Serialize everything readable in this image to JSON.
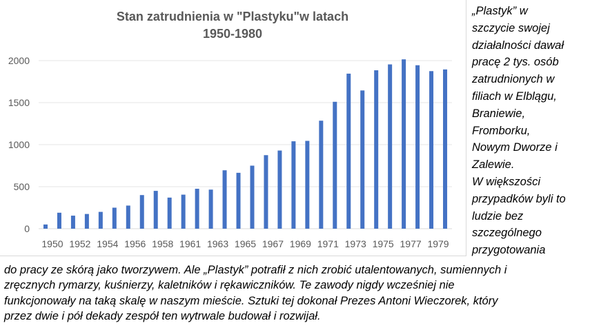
{
  "chart_data": {
    "type": "bar",
    "title": [
      "Stan zatrudnienia w \"Plastyku\"w latach",
      "1950-1980"
    ],
    "xlabel": "",
    "ylabel": "",
    "ylim": [
      0,
      2000
    ],
    "yticks": [
      0,
      500,
      1000,
      1500,
      2000
    ],
    "grid": true,
    "legend": "none",
    "bar_color": "#4472c4",
    "categories": [
      "1950",
      "1951",
      "1952",
      "1953",
      "1954",
      "1955",
      "1956",
      "1957",
      "1958",
      "1959",
      "1961",
      "1962",
      "1963",
      "1964",
      "1965",
      "1966",
      "1967",
      "1968",
      "1969",
      "1970",
      "1971",
      "1972",
      "1973",
      "1974",
      "1975",
      "1976",
      "1977",
      "1978",
      "1979",
      "1980"
    ],
    "category_labels": [
      "1950",
      "",
      "1952",
      "",
      "1954",
      "",
      "1956",
      "",
      "1958",
      "",
      "1961",
      "",
      "1963",
      "",
      "1965",
      "",
      "1967",
      "",
      "1969",
      "",
      "1971",
      "",
      "1973",
      "",
      "1975",
      "",
      "1977",
      "",
      "1979",
      ""
    ],
    "values": [
      50,
      190,
      155,
      175,
      200,
      250,
      275,
      400,
      450,
      370,
      405,
      475,
      465,
      695,
      665,
      750,
      875,
      930,
      1040,
      1045,
      1285,
      1510,
      1845,
      1645,
      1885,
      1955,
      2015,
      1945,
      1875,
      1895
    ]
  },
  "side_text": "„Plastyk” w\nszczycie swojej\ndziałalności dawał\npracę 2 tys. osób\nzatrudnionych w\nfiliach w Elblągu,\nBraniewie,\nFromborku,\nNowym Dworze i\nZalewie.\nW większości\nprzypadków byli to\nludzie bez\nszczególnego\nprzygotowania",
  "bottom_text": "do pracy ze skórą jako tworzywem. Ale „Plastyk” potrafił z nich zrobić utalentowanych, sumiennych i\nzręcznych rymarzy, kuśnierzy, kaletników i rękawiczników. Te zawody nigdy wcześniej nie\nfunkcjonowały na taką skalę w naszym mieście. Sztuki tej dokonał Prezes Antoni Wieczorek, który\nprzez dwie i pół dekady zespół ten wytrwale budował i rozwijał."
}
